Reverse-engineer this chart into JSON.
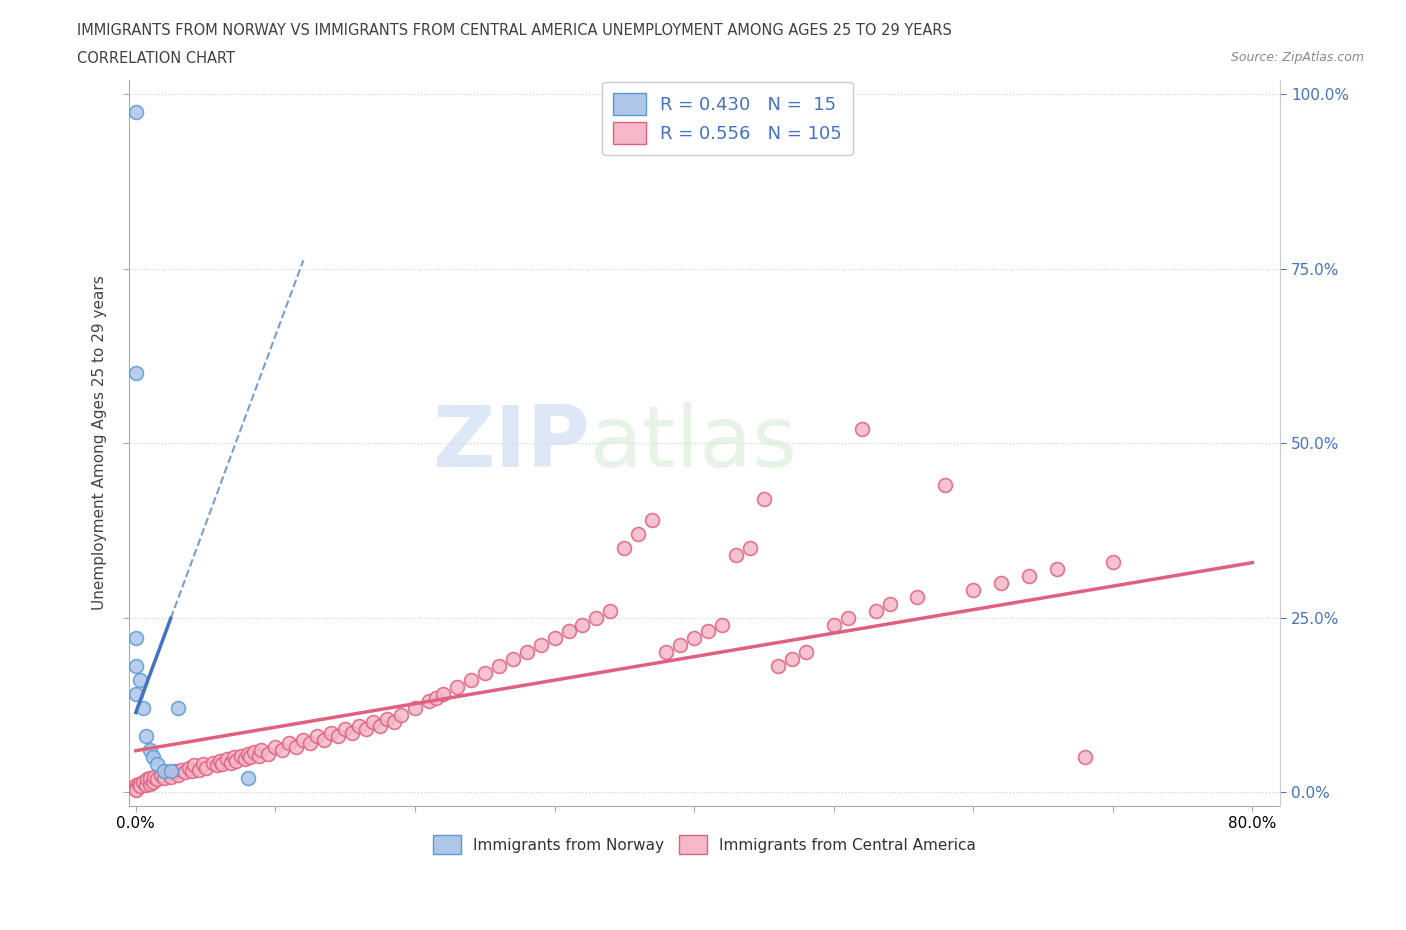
{
  "title_line1": "IMMIGRANTS FROM NORWAY VS IMMIGRANTS FROM CENTRAL AMERICA UNEMPLOYMENT AMONG AGES 25 TO 29 YEARS",
  "title_line2": "CORRELATION CHART",
  "source_text": "Source: ZipAtlas.com",
  "ylabel": "Unemployment Among Ages 25 to 29 years",
  "xlim": [
    -0.005,
    0.82
  ],
  "ylim": [
    -0.02,
    1.02
  ],
  "norway_color": "#aec6e8",
  "norway_edge_color": "#5b9bd5",
  "norway_line_color": "#4472c4",
  "central_america_color": "#f4b8c8",
  "central_america_edge_color": "#e06080",
  "central_america_line_color": "#e06080",
  "norway_R": 0.43,
  "norway_N": 15,
  "central_america_R": 0.556,
  "central_america_N": 105,
  "norway_x": [
    0.0,
    0.0,
    0.0,
    0.0,
    0.0,
    0.003,
    0.005,
    0.007,
    0.01,
    0.012,
    0.015,
    0.02,
    0.025,
    0.03,
    0.08
  ],
  "norway_y": [
    0.975,
    0.6,
    0.22,
    0.18,
    0.14,
    0.16,
    0.12,
    0.08,
    0.06,
    0.05,
    0.04,
    0.03,
    0.03,
    0.12,
    0.02
  ],
  "ca_x": [
    0.0,
    0.0,
    0.0,
    0.002,
    0.003,
    0.005,
    0.007,
    0.008,
    0.01,
    0.01,
    0.012,
    0.013,
    0.015,
    0.018,
    0.02,
    0.022,
    0.025,
    0.028,
    0.03,
    0.032,
    0.035,
    0.038,
    0.04,
    0.042,
    0.045,
    0.048,
    0.05,
    0.055,
    0.058,
    0.06,
    0.062,
    0.065,
    0.068,
    0.07,
    0.072,
    0.075,
    0.078,
    0.08,
    0.082,
    0.085,
    0.088,
    0.09,
    0.095,
    0.1,
    0.105,
    0.11,
    0.115,
    0.12,
    0.125,
    0.13,
    0.135,
    0.14,
    0.145,
    0.15,
    0.155,
    0.16,
    0.165,
    0.17,
    0.175,
    0.18,
    0.185,
    0.19,
    0.2,
    0.21,
    0.215,
    0.22,
    0.23,
    0.24,
    0.25,
    0.26,
    0.27,
    0.28,
    0.29,
    0.3,
    0.31,
    0.32,
    0.33,
    0.34,
    0.35,
    0.36,
    0.37,
    0.38,
    0.39,
    0.4,
    0.41,
    0.42,
    0.43,
    0.44,
    0.45,
    0.46,
    0.47,
    0.48,
    0.5,
    0.51,
    0.52,
    0.53,
    0.54,
    0.56,
    0.58,
    0.6,
    0.62,
    0.64,
    0.66,
    0.68,
    0.7
  ],
  "ca_y": [
    0.01,
    0.005,
    0.003,
    0.012,
    0.008,
    0.015,
    0.01,
    0.018,
    0.012,
    0.02,
    0.015,
    0.022,
    0.018,
    0.025,
    0.02,
    0.028,
    0.022,
    0.03,
    0.025,
    0.032,
    0.028,
    0.035,
    0.03,
    0.038,
    0.032,
    0.04,
    0.035,
    0.042,
    0.038,
    0.045,
    0.04,
    0.048,
    0.042,
    0.05,
    0.045,
    0.052,
    0.048,
    0.055,
    0.05,
    0.058,
    0.052,
    0.06,
    0.055,
    0.065,
    0.06,
    0.07,
    0.065,
    0.075,
    0.07,
    0.08,
    0.075,
    0.085,
    0.08,
    0.09,
    0.085,
    0.095,
    0.09,
    0.1,
    0.095,
    0.105,
    0.1,
    0.11,
    0.12,
    0.13,
    0.135,
    0.14,
    0.15,
    0.16,
    0.17,
    0.18,
    0.19,
    0.2,
    0.21,
    0.22,
    0.23,
    0.24,
    0.25,
    0.26,
    0.35,
    0.37,
    0.39,
    0.2,
    0.21,
    0.22,
    0.23,
    0.24,
    0.34,
    0.35,
    0.42,
    0.18,
    0.19,
    0.2,
    0.24,
    0.25,
    0.52,
    0.26,
    0.27,
    0.28,
    0.44,
    0.29,
    0.3,
    0.31,
    0.32,
    0.05,
    0.33
  ],
  "watermark_zip": "ZIP",
  "watermark_atlas": "atlas",
  "background_color": "#ffffff",
  "grid_color": "#d0d0d0",
  "title_color": "#404040",
  "source_color": "#888888",
  "right_tick_color": "#4472c4",
  "marker_size": 100
}
